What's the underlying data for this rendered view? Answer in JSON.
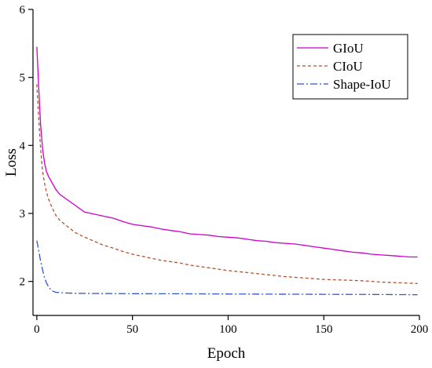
{
  "chart_data": {
    "type": "line",
    "title": "",
    "xlabel": "Epoch",
    "ylabel": "Loss",
    "xlim": [
      -2,
      200
    ],
    "ylim": [
      1.5,
      6
    ],
    "xticks": [
      0,
      50,
      100,
      150,
      200
    ],
    "yticks": [
      2,
      3,
      4,
      5,
      6
    ],
    "xtick_labels": [
      "0",
      "50",
      "100",
      "150",
      "200"
    ],
    "ytick_labels": [
      "2",
      "3",
      "4",
      "5",
      "6"
    ],
    "grid": false,
    "legend_position": "top-right",
    "series": [
      {
        "name": "GIoU",
        "color": "#cc00cc",
        "dash": "solid",
        "x": [
          0,
          1,
          2,
          3,
          4,
          5,
          6,
          8,
          10,
          12,
          15,
          20,
          25,
          30,
          35,
          40,
          45,
          50,
          55,
          60,
          65,
          70,
          75,
          80,
          85,
          90,
          95,
          100,
          105,
          110,
          115,
          120,
          125,
          130,
          135,
          140,
          145,
          150,
          155,
          160,
          165,
          170,
          175,
          180,
          185,
          190,
          195,
          199
        ],
        "y": [
          5.45,
          4.85,
          4.3,
          3.95,
          3.75,
          3.62,
          3.55,
          3.45,
          3.35,
          3.28,
          3.22,
          3.12,
          3.02,
          2.99,
          2.96,
          2.93,
          2.88,
          2.84,
          2.82,
          2.8,
          2.77,
          2.75,
          2.73,
          2.7,
          2.69,
          2.68,
          2.66,
          2.65,
          2.64,
          2.62,
          2.6,
          2.59,
          2.57,
          2.56,
          2.55,
          2.53,
          2.51,
          2.49,
          2.47,
          2.45,
          2.43,
          2.42,
          2.4,
          2.39,
          2.38,
          2.37,
          2.36,
          2.36
        ]
      },
      {
        "name": "CIoU",
        "color": "#b5522d",
        "dash": "dashed",
        "x": [
          0,
          1,
          2,
          3,
          4,
          5,
          6,
          8,
          10,
          12,
          15,
          20,
          25,
          30,
          35,
          40,
          45,
          50,
          55,
          60,
          65,
          70,
          75,
          80,
          85,
          90,
          95,
          100,
          110,
          120,
          130,
          140,
          150,
          160,
          170,
          180,
          190,
          199
        ],
        "y": [
          4.9,
          4.4,
          3.95,
          3.62,
          3.45,
          3.32,
          3.22,
          3.08,
          2.97,
          2.9,
          2.83,
          2.72,
          2.65,
          2.59,
          2.53,
          2.49,
          2.44,
          2.4,
          2.37,
          2.34,
          2.31,
          2.29,
          2.27,
          2.24,
          2.22,
          2.2,
          2.18,
          2.16,
          2.13,
          2.1,
          2.07,
          2.05,
          2.03,
          2.02,
          2.01,
          1.99,
          1.98,
          1.97
        ]
      },
      {
        "name": "Shape-IoU",
        "color": "#3355cc",
        "dash": "dashdot",
        "x": [
          0,
          1,
          2,
          3,
          4,
          5,
          6,
          7,
          8,
          10,
          12,
          15,
          20,
          30,
          50,
          75,
          100,
          125,
          150,
          175,
          199
        ],
        "y": [
          2.6,
          2.45,
          2.3,
          2.17,
          2.06,
          1.98,
          1.93,
          1.89,
          1.86,
          1.84,
          1.835,
          1.83,
          1.825,
          1.823,
          1.82,
          1.818,
          1.815,
          1.813,
          1.81,
          1.808,
          1.805
        ]
      }
    ]
  }
}
